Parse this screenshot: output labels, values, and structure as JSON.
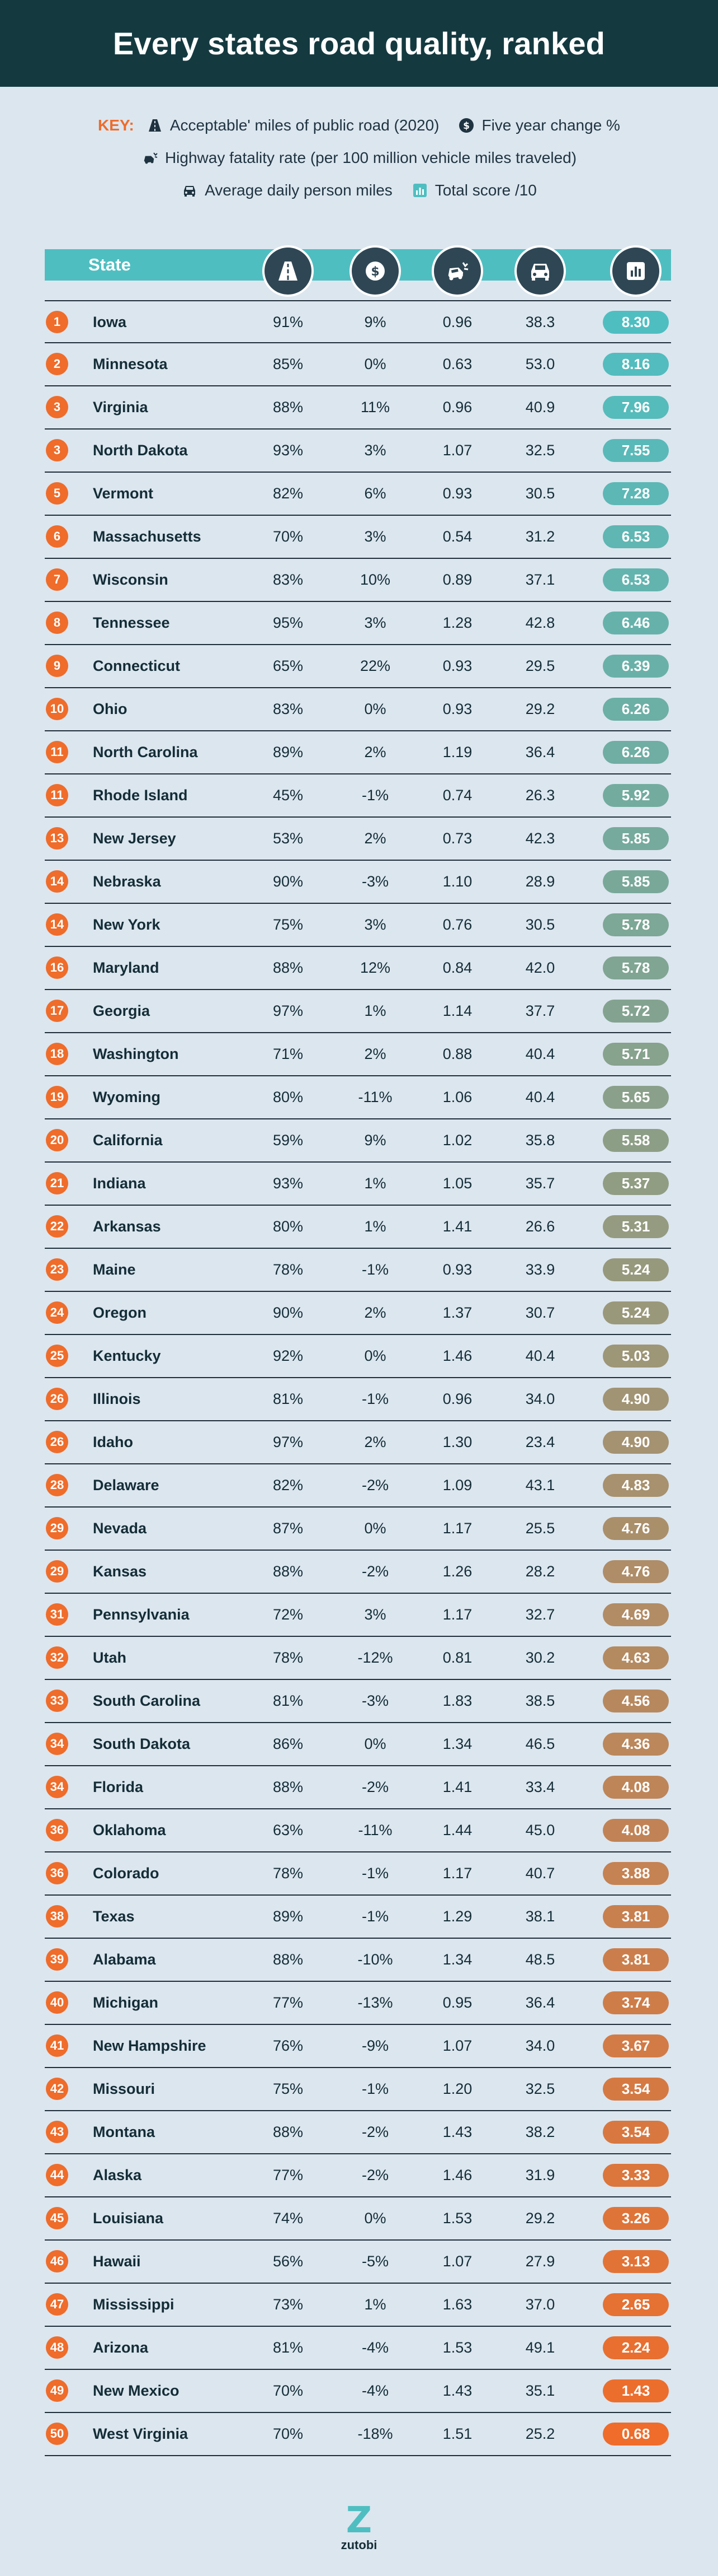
{
  "title": "Every states road quality, ranked",
  "key": {
    "label": "KEY:",
    "items": [
      {
        "icon": "road-icon",
        "text": "Acceptable' miles of public road (2020)"
      },
      {
        "icon": "dollar-icon",
        "text": "Five year change %"
      },
      {
        "icon": "car-crash-icon",
        "text": "Highway fatality rate (per 100 million vehicle miles traveled)"
      },
      {
        "icon": "car-icon",
        "text": "Average daily person miles"
      },
      {
        "icon": "score-chart-icon",
        "text": "Total score /10"
      }
    ]
  },
  "table_header": {
    "state_label": "State"
  },
  "colors": {
    "header_bg": "#143a40",
    "page_bg": "#dce6ef",
    "accent_orange": "#ef6c2a",
    "accent_teal": "#4fbec1",
    "head_icon_bg": "#2f4755"
  },
  "chart_data": {
    "type": "table",
    "title": "Every states road quality, ranked",
    "columns": [
      "Rank",
      "State",
      "Acceptable' miles of public road (2020)",
      "Five year change %",
      "Highway fatality rate (per 100 million vehicle miles traveled)",
      "Average daily person miles",
      "Total score /10"
    ],
    "rows": [
      {
        "rank": "1",
        "state": "Iowa",
        "acceptable": "91%",
        "change": "9%",
        "fatality": "0.96",
        "miles": "38.3",
        "score": "8.30"
      },
      {
        "rank": "2",
        "state": "Minnesota",
        "acceptable": "85%",
        "change": "0%",
        "fatality": "0.63",
        "miles": "53.0",
        "score": "8.16"
      },
      {
        "rank": "3",
        "state": "Virginia",
        "acceptable": "88%",
        "change": "11%",
        "fatality": "0.96",
        "miles": "40.9",
        "score": "7.96"
      },
      {
        "rank": "3",
        "state": "North Dakota",
        "acceptable": "93%",
        "change": "3%",
        "fatality": "1.07",
        "miles": "32.5",
        "score": "7.55"
      },
      {
        "rank": "5",
        "state": "Vermont",
        "acceptable": "82%",
        "change": "6%",
        "fatality": "0.93",
        "miles": "30.5",
        "score": "7.28"
      },
      {
        "rank": "6",
        "state": "Massachusetts",
        "acceptable": "70%",
        "change": "3%",
        "fatality": "0.54",
        "miles": "31.2",
        "score": "6.53"
      },
      {
        "rank": "7",
        "state": "Wisconsin",
        "acceptable": "83%",
        "change": "10%",
        "fatality": "0.89",
        "miles": "37.1",
        "score": "6.53"
      },
      {
        "rank": "8",
        "state": "Tennessee",
        "acceptable": "95%",
        "change": "3%",
        "fatality": "1.28",
        "miles": "42.8",
        "score": "6.46"
      },
      {
        "rank": "9",
        "state": "Connecticut",
        "acceptable": "65%",
        "change": "22%",
        "fatality": "0.93",
        "miles": "29.5",
        "score": "6.39"
      },
      {
        "rank": "10",
        "state": "Ohio",
        "acceptable": "83%",
        "change": "0%",
        "fatality": "0.93",
        "miles": "29.2",
        "score": "6.26"
      },
      {
        "rank": "11",
        "state": "North Carolina",
        "acceptable": "89%",
        "change": "2%",
        "fatality": "1.19",
        "miles": "36.4",
        "score": "6.26"
      },
      {
        "rank": "11",
        "state": "Rhode Island",
        "acceptable": "45%",
        "change": "-1%",
        "fatality": "0.74",
        "miles": "26.3",
        "score": "5.92"
      },
      {
        "rank": "13",
        "state": "New Jersey",
        "acceptable": "53%",
        "change": "2%",
        "fatality": "0.73",
        "miles": "42.3",
        "score": "5.85"
      },
      {
        "rank": "14",
        "state": "Nebraska",
        "acceptable": "90%",
        "change": "-3%",
        "fatality": "1.10",
        "miles": "28.9",
        "score": "5.85"
      },
      {
        "rank": "14",
        "state": "New York",
        "acceptable": "75%",
        "change": "3%",
        "fatality": "0.76",
        "miles": "30.5",
        "score": "5.78"
      },
      {
        "rank": "16",
        "state": "Maryland",
        "acceptable": "88%",
        "change": "12%",
        "fatality": "0.84",
        "miles": "42.0",
        "score": "5.78"
      },
      {
        "rank": "17",
        "state": "Georgia",
        "acceptable": "97%",
        "change": "1%",
        "fatality": "1.14",
        "miles": "37.7",
        "score": "5.72"
      },
      {
        "rank": "18",
        "state": "Washington",
        "acceptable": "71%",
        "change": "2%",
        "fatality": "0.88",
        "miles": "40.4",
        "score": "5.71"
      },
      {
        "rank": "19",
        "state": "Wyoming",
        "acceptable": "80%",
        "change": "-11%",
        "fatality": "1.06",
        "miles": "40.4",
        "score": "5.65"
      },
      {
        "rank": "20",
        "state": "California",
        "acceptable": "59%",
        "change": "9%",
        "fatality": "1.02",
        "miles": "35.8",
        "score": "5.58"
      },
      {
        "rank": "21",
        "state": "Indiana",
        "acceptable": "93%",
        "change": "1%",
        "fatality": "1.05",
        "miles": "35.7",
        "score": "5.37"
      },
      {
        "rank": "22",
        "state": "Arkansas",
        "acceptable": "80%",
        "change": "1%",
        "fatality": "1.41",
        "miles": "26.6",
        "score": "5.31"
      },
      {
        "rank": "23",
        "state": "Maine",
        "acceptable": "78%",
        "change": "-1%",
        "fatality": "0.93",
        "miles": "33.9",
        "score": "5.24"
      },
      {
        "rank": "24",
        "state": "Oregon",
        "acceptable": "90%",
        "change": "2%",
        "fatality": "1.37",
        "miles": "30.7",
        "score": "5.24"
      },
      {
        "rank": "25",
        "state": "Kentucky",
        "acceptable": "92%",
        "change": "0%",
        "fatality": "1.46",
        "miles": "40.4",
        "score": "5.03"
      },
      {
        "rank": "26",
        "state": "Illinois",
        "acceptable": "81%",
        "change": "-1%",
        "fatality": "0.96",
        "miles": "34.0",
        "score": "4.90"
      },
      {
        "rank": "26",
        "state": "Idaho",
        "acceptable": "97%",
        "change": "2%",
        "fatality": "1.30",
        "miles": "23.4",
        "score": "4.90"
      },
      {
        "rank": "28",
        "state": "Delaware",
        "acceptable": "82%",
        "change": "-2%",
        "fatality": "1.09",
        "miles": "43.1",
        "score": "4.83"
      },
      {
        "rank": "29",
        "state": "Nevada",
        "acceptable": "87%",
        "change": "0%",
        "fatality": "1.17",
        "miles": "25.5",
        "score": "4.76"
      },
      {
        "rank": "29",
        "state": "Kansas",
        "acceptable": "88%",
        "change": "-2%",
        "fatality": "1.26",
        "miles": "28.2",
        "score": "4.76"
      },
      {
        "rank": "31",
        "state": "Pennsylvania",
        "acceptable": "72%",
        "change": "3%",
        "fatality": "1.17",
        "miles": "32.7",
        "score": "4.69"
      },
      {
        "rank": "32",
        "state": "Utah",
        "acceptable": "78%",
        "change": "-12%",
        "fatality": "0.81",
        "miles": "30.2",
        "score": "4.63"
      },
      {
        "rank": "33",
        "state": "South Carolina",
        "acceptable": "81%",
        "change": "-3%",
        "fatality": "1.83",
        "miles": "38.5",
        "score": "4.56"
      },
      {
        "rank": "34",
        "state": "South Dakota",
        "acceptable": "86%",
        "change": "0%",
        "fatality": "1.34",
        "miles": "46.5",
        "score": "4.36"
      },
      {
        "rank": "34",
        "state": "Florida",
        "acceptable": "88%",
        "change": "-2%",
        "fatality": "1.41",
        "miles": "33.4",
        "score": "4.08"
      },
      {
        "rank": "36",
        "state": "Oklahoma",
        "acceptable": "63%",
        "change": "-11%",
        "fatality": "1.44",
        "miles": "45.0",
        "score": "4.08"
      },
      {
        "rank": "36",
        "state": "Colorado",
        "acceptable": "78%",
        "change": "-1%",
        "fatality": "1.17",
        "miles": "40.7",
        "score": "3.88"
      },
      {
        "rank": "38",
        "state": "Texas",
        "acceptable": "89%",
        "change": "-1%",
        "fatality": "1.29",
        "miles": "38.1",
        "score": "3.81"
      },
      {
        "rank": "39",
        "state": "Alabama",
        "acceptable": "88%",
        "change": "-10%",
        "fatality": "1.34",
        "miles": "48.5",
        "score": "3.81"
      },
      {
        "rank": "40",
        "state": "Michigan",
        "acceptable": "77%",
        "change": "-13%",
        "fatality": "0.95",
        "miles": "36.4",
        "score": "3.74"
      },
      {
        "rank": "41",
        "state": "New Hampshire",
        "acceptable": "76%",
        "change": "-9%",
        "fatality": "1.07",
        "miles": "34.0",
        "score": "3.67"
      },
      {
        "rank": "42",
        "state": "Missouri",
        "acceptable": "75%",
        "change": "-1%",
        "fatality": "1.20",
        "miles": "32.5",
        "score": "3.54"
      },
      {
        "rank": "43",
        "state": "Montana",
        "acceptable": "88%",
        "change": "-2%",
        "fatality": "1.43",
        "miles": "38.2",
        "score": "3.54"
      },
      {
        "rank": "44",
        "state": "Alaska",
        "acceptable": "77%",
        "change": "-2%",
        "fatality": "1.46",
        "miles": "31.9",
        "score": "3.33"
      },
      {
        "rank": "45",
        "state": "Louisiana",
        "acceptable": "74%",
        "change": "0%",
        "fatality": "1.53",
        "miles": "29.2",
        "score": "3.26"
      },
      {
        "rank": "46",
        "state": "Hawaii",
        "acceptable": "56%",
        "change": "-5%",
        "fatality": "1.07",
        "miles": "27.9",
        "score": "3.13"
      },
      {
        "rank": "47",
        "state": "Mississippi",
        "acceptable": "73%",
        "change": "1%",
        "fatality": "1.63",
        "miles": "37.0",
        "score": "2.65"
      },
      {
        "rank": "48",
        "state": "Arizona",
        "acceptable": "81%",
        "change": "-4%",
        "fatality": "1.53",
        "miles": "49.1",
        "score": "2.24"
      },
      {
        "rank": "49",
        "state": "New Mexico",
        "acceptable": "70%",
        "change": "-4%",
        "fatality": "1.43",
        "miles": "35.1",
        "score": "1.43"
      },
      {
        "rank": "50",
        "state": "West Virginia",
        "acceptable": "70%",
        "change": "-18%",
        "fatality": "1.51",
        "miles": "25.2",
        "score": "0.68"
      }
    ]
  },
  "footer": {
    "brand": "zutobi",
    "logo_mark": "Z"
  }
}
